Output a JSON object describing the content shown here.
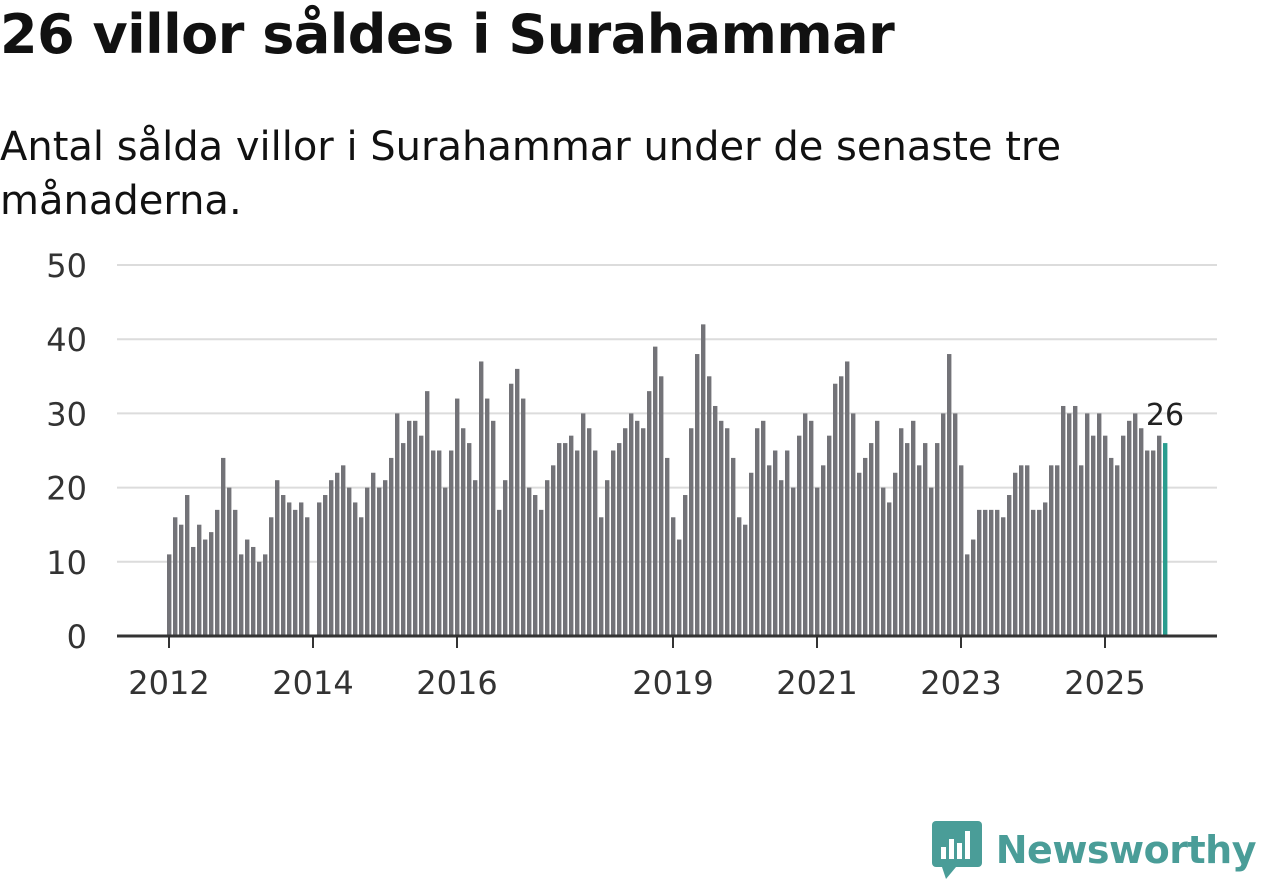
{
  "title": "26 villor såldes i Surahammar",
  "subtitle": "Antal sålda villor i Surahammar under de senaste tre månaderna.",
  "brand": {
    "name": "Newsworthy",
    "logo_icon": "newsworthy-logo-icon",
    "color": "#4a9d98"
  },
  "colors": {
    "bar": "#737378",
    "highlight": "#2a9d8f",
    "grid": "#dcdcdc",
    "axis": "#333333",
    "text": "#333333"
  },
  "chart_data": {
    "type": "bar",
    "title": "26 villor såldes i Surahammar",
    "xlabel": "",
    "ylabel": "",
    "ylim": [
      0,
      50
    ],
    "yticks": [
      "0",
      "10",
      "20",
      "30",
      "40",
      "50"
    ],
    "grid": true,
    "first_month": "2012-01",
    "xticks": [
      {
        "label": "2012",
        "month_index": 0
      },
      {
        "label": "2014",
        "month_index": 24
      },
      {
        "label": "2016",
        "month_index": 48
      },
      {
        "label": "2019",
        "month_index": 84
      },
      {
        "label": "2021",
        "month_index": 108
      },
      {
        "label": "2023",
        "month_index": 132
      },
      {
        "label": "2025",
        "month_index": 156
      }
    ],
    "values": [
      11,
      16,
      15,
      19,
      12,
      15,
      13,
      14,
      17,
      24,
      20,
      17,
      11,
      13,
      12,
      10,
      11,
      16,
      21,
      19,
      18,
      17,
      18,
      16,
      null,
      18,
      19,
      21,
      22,
      23,
      20,
      18,
      16,
      20,
      22,
      20,
      21,
      24,
      30,
      26,
      29,
      29,
      27,
      33,
      25,
      25,
      20,
      25,
      32,
      28,
      26,
      21,
      37,
      32,
      29,
      17,
      21,
      34,
      36,
      32,
      20,
      19,
      17,
      21,
      23,
      26,
      26,
      27,
      25,
      30,
      28,
      25,
      16,
      21,
      25,
      26,
      28,
      30,
      29,
      28,
      33,
      39,
      35,
      24,
      16,
      13,
      19,
      28,
      38,
      42,
      35,
      31,
      29,
      28,
      24,
      16,
      15,
      22,
      28,
      29,
      23,
      25,
      21,
      25,
      20,
      27,
      30,
      29,
      20,
      23,
      27,
      34,
      35,
      37,
      30,
      22,
      24,
      26,
      29,
      20,
      18,
      22,
      28,
      26,
      29,
      23,
      26,
      20,
      26,
      30,
      38,
      30,
      23,
      11,
      13,
      17,
      17,
      17,
      17,
      16,
      19,
      22,
      23,
      23,
      17,
      17,
      18,
      23,
      23,
      31,
      30,
      31,
      23,
      30,
      27,
      30,
      27,
      24,
      23,
      27,
      29,
      30,
      28,
      25,
      25,
      27,
      26
    ],
    "highlight_last": true,
    "last_value_label": "26"
  }
}
